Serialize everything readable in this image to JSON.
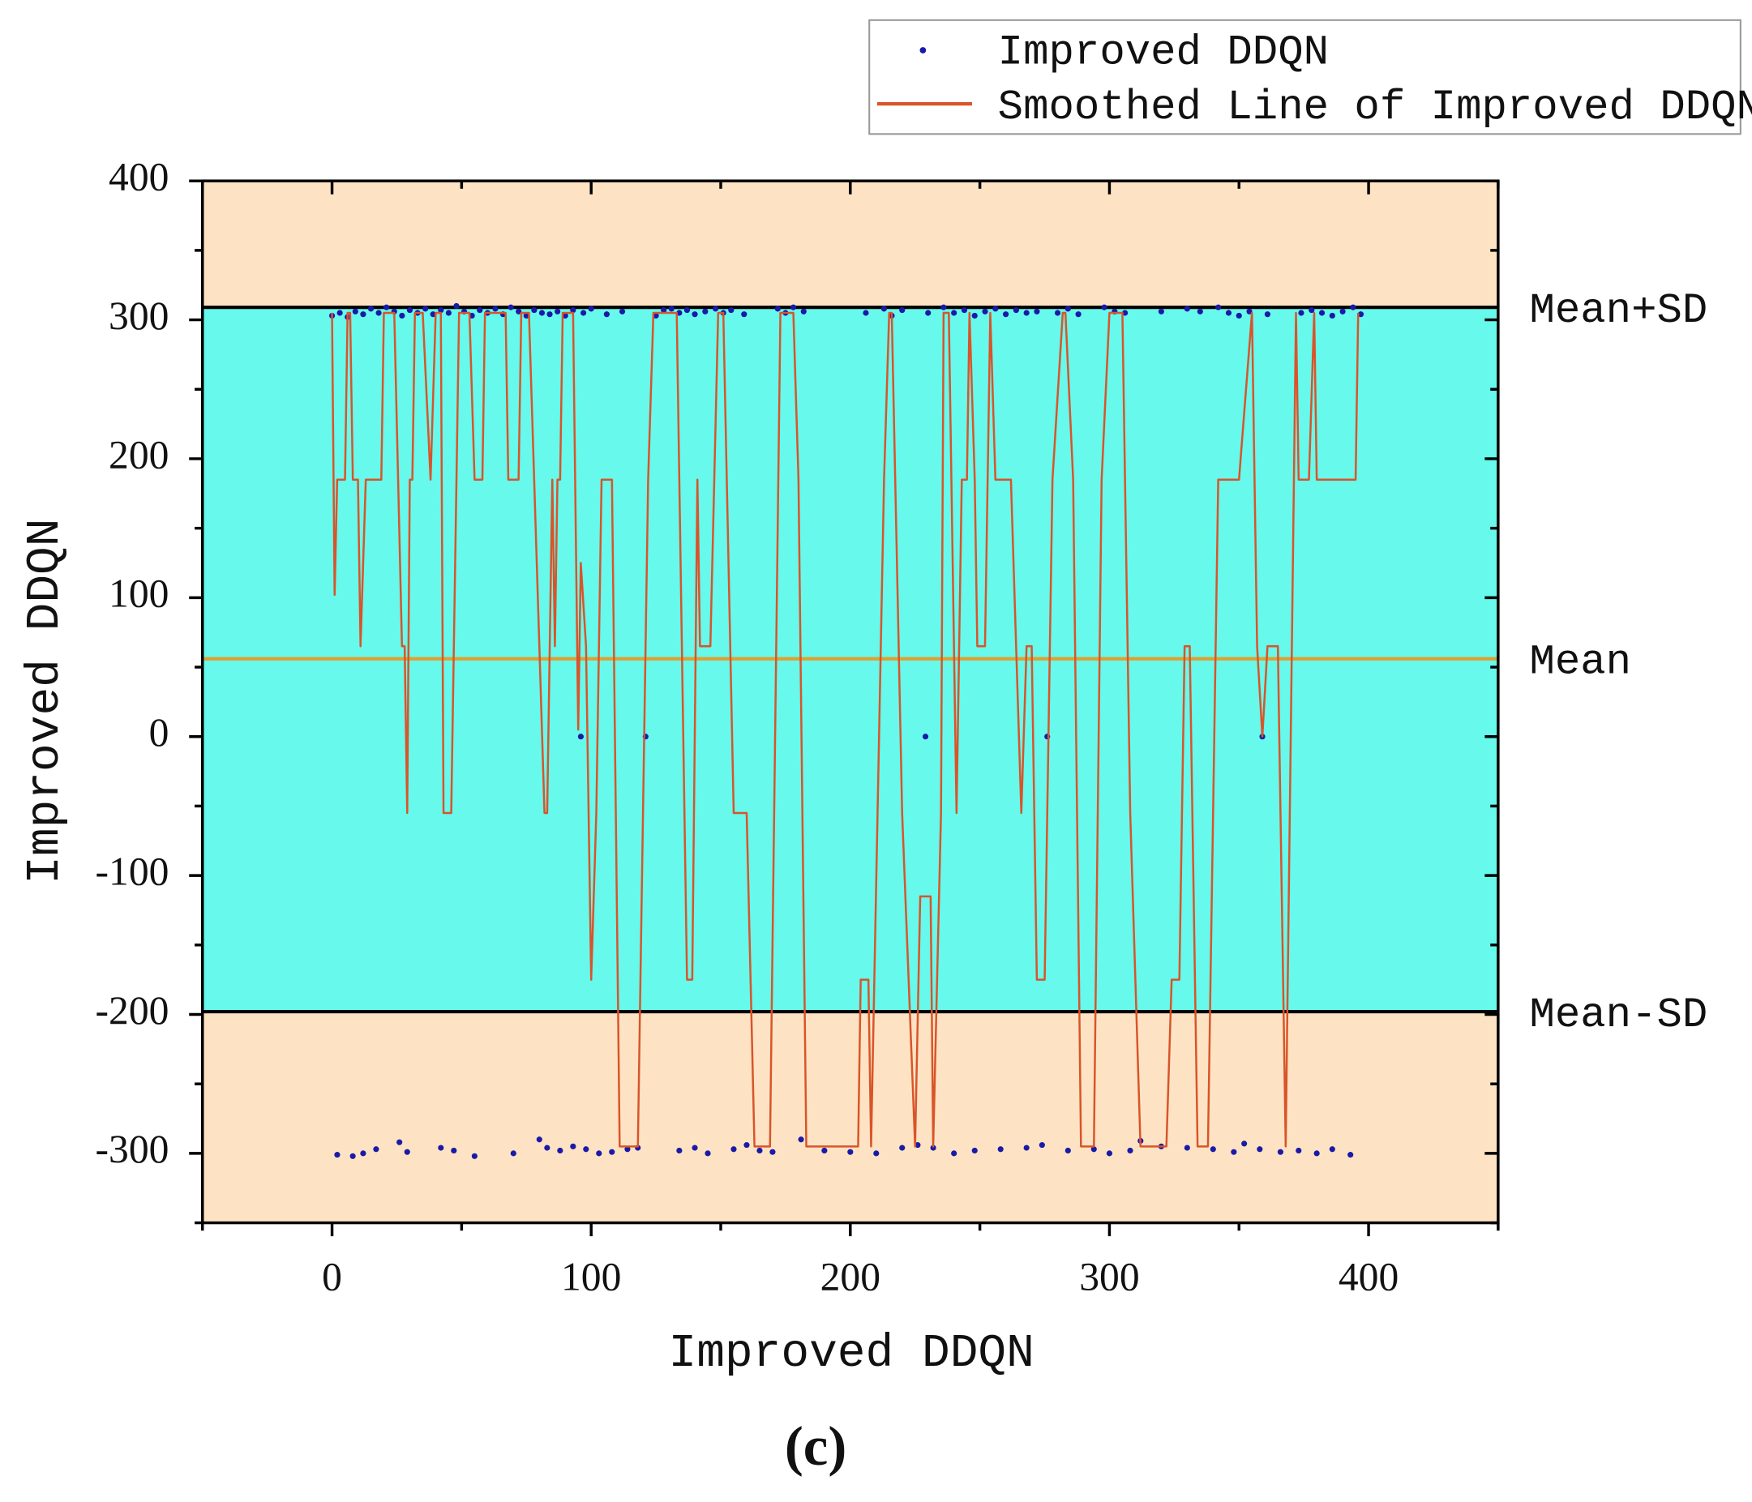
{
  "chart_data": {
    "type": "scatter",
    "xlabel": "Improved DDQN",
    "ylabel": "Improved DDQN",
    "caption": "(c)",
    "xlim": [
      -50,
      450
    ],
    "ylim": [
      -350,
      400
    ],
    "xticks": [
      0,
      100,
      200,
      300,
      400
    ],
    "yticks": [
      -300,
      -200,
      -100,
      0,
      100,
      200,
      300,
      400
    ],
    "band_colors": {
      "outer": "#fde3c3",
      "inner": "#66f9ec"
    },
    "reference_lines": [
      {
        "label": "Mean+SD",
        "value": 309,
        "color": "#000000"
      },
      {
        "label": "Mean",
        "value": 56,
        "color": "#e0a030"
      },
      {
        "label": "Mean-SD",
        "value": -198,
        "color": "#000000"
      }
    ],
    "legend": "top-right",
    "series": [
      {
        "name": "Improved DDQN",
        "type": "scatter",
        "color": "#1a1aa8",
        "x": [
          0,
          3,
          6,
          9,
          12,
          15,
          18,
          21,
          24,
          27,
          30,
          33,
          36,
          39,
          42,
          45,
          48,
          51,
          54,
          57,
          60,
          63,
          66,
          69,
          72,
          75,
          78,
          81,
          84,
          87,
          90,
          93,
          97,
          100,
          106,
          112,
          125,
          128,
          131,
          134,
          137,
          140,
          144,
          148,
          151,
          154,
          159,
          172,
          175,
          178,
          182,
          206,
          213,
          216,
          220,
          230,
          236,
          240,
          244,
          248,
          252,
          256,
          260,
          264,
          268,
          272,
          280,
          284,
          288,
          298,
          302,
          306,
          320,
          330,
          335,
          342,
          346,
          350,
          354,
          361,
          374,
          378,
          382,
          386,
          390,
          394,
          397,
          96,
          121,
          229,
          276,
          359,
          2,
          8,
          12,
          17,
          26,
          29,
          42,
          47,
          55,
          70,
          80,
          83,
          88,
          93,
          98,
          103,
          108,
          114,
          118,
          134,
          140,
          145,
          155,
          160,
          165,
          170,
          181,
          190,
          200,
          210,
          220,
          226,
          232,
          240,
          248,
          258,
          268,
          274,
          284,
          294,
          300,
          308,
          312,
          320,
          330,
          340,
          348,
          352,
          358,
          366,
          373,
          380,
          386,
          393
        ],
        "values": [
          303,
          305,
          302,
          306,
          304,
          308,
          305,
          309,
          306,
          303,
          307,
          305,
          308,
          304,
          307,
          305,
          310,
          306,
          303,
          307,
          305,
          308,
          304,
          309,
          306,
          303,
          307,
          305,
          304,
          306,
          303,
          307,
          305,
          308,
          304,
          306,
          303,
          307,
          308,
          305,
          307,
          304,
          306,
          308,
          305,
          307,
          304,
          308,
          305,
          309,
          306,
          305,
          308,
          303,
          307,
          305,
          309,
          305,
          307,
          303,
          306,
          308,
          304,
          307,
          305,
          306,
          305,
          308,
          304,
          309,
          306,
          305,
          306,
          308,
          306,
          309,
          305,
          303,
          306,
          304,
          305,
          307,
          305,
          303,
          306,
          309,
          304,
          0,
          0,
          0,
          0,
          0,
          -301,
          -302,
          -300,
          -297,
          -292,
          -299,
          -296,
          -298,
          -302,
          -300,
          -290,
          -296,
          -298,
          -295,
          -297,
          -300,
          -299,
          -297,
          -296,
          -298,
          -296,
          -300,
          -297,
          -294,
          -298,
          -299,
          -290,
          -298,
          -299,
          -300,
          -296,
          -294,
          -296,
          -300,
          -298,
          -297,
          -296,
          -294,
          -298,
          -297,
          -300,
          -298,
          -291,
          -295,
          -296,
          -297,
          -299,
          -293,
          -297,
          -299,
          -298,
          -300,
          -297,
          -301
        ]
      },
      {
        "name": "Smoothed Line of Improved DDQN",
        "type": "line",
        "color": "#d9542a",
        "x": [
          0,
          1,
          2,
          5,
          6,
          7,
          8,
          10,
          11,
          13,
          19,
          20,
          24,
          27,
          28,
          29,
          30,
          31,
          32,
          35,
          38,
          40,
          42,
          43,
          46,
          48,
          49,
          53,
          55,
          58,
          59,
          67,
          68,
          72,
          73,
          76,
          80,
          82,
          83,
          85,
          86,
          87,
          88,
          89,
          93,
          95,
          96,
          98,
          100,
          102,
          104,
          108,
          111,
          118,
          122,
          124,
          133,
          137,
          139,
          141,
          142,
          146,
          149,
          151,
          155,
          160,
          163,
          169,
          173,
          178,
          180,
          183,
          203,
          204,
          207,
          208,
          213,
          215,
          216,
          220,
          225,
          227,
          231,
          232,
          235,
          236,
          238,
          241,
          243,
          245,
          246,
          248,
          249,
          252,
          254,
          256,
          262,
          266,
          268,
          270,
          272,
          275,
          278,
          282,
          283,
          286,
          289,
          294,
          297,
          300,
          305,
          308,
          312,
          322,
          324,
          327,
          329,
          331,
          334,
          338,
          342,
          346,
          350,
          355,
          357,
          359,
          361,
          365,
          368,
          372,
          373,
          377,
          379,
          380,
          385,
          395,
          396
        ],
        "values": [
          305,
          102,
          185,
          185,
          305,
          305,
          185,
          185,
          65,
          185,
          185,
          305,
          305,
          65,
          65,
          -55,
          185,
          185,
          305,
          305,
          185,
          305,
          305,
          -55,
          -55,
          185,
          305,
          305,
          185,
          185,
          305,
          305,
          185,
          185,
          305,
          305,
          65,
          -55,
          -55,
          185,
          65,
          185,
          185,
          305,
          305,
          5,
          125,
          65,
          -175,
          -55,
          185,
          185,
          -295,
          -295,
          185,
          305,
          305,
          -175,
          -175,
          185,
          65,
          65,
          305,
          305,
          -55,
          -55,
          -295,
          -295,
          305,
          305,
          185,
          -295,
          -295,
          -175,
          -175,
          -295,
          185,
          305,
          305,
          -55,
          -295,
          -115,
          -115,
          -295,
          -55,
          305,
          305,
          -55,
          185,
          185,
          305,
          185,
          65,
          65,
          305,
          185,
          185,
          -55,
          65,
          65,
          -175,
          -175,
          185,
          305,
          305,
          185,
          -295,
          -295,
          185,
          305,
          305,
          -55,
          -295,
          -295,
          -175,
          -175,
          65,
          65,
          -295,
          -295,
          185,
          185,
          185,
          305,
          65,
          0,
          65,
          65,
          -295,
          305,
          185,
          185,
          305,
          185,
          185,
          185,
          305
        ]
      }
    ]
  }
}
